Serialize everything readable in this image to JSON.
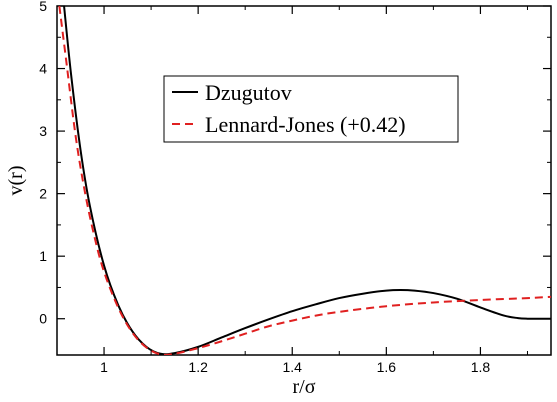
{
  "chart_data": {
    "type": "line",
    "xlabel": "r/σ",
    "ylabel": "v(r)",
    "xlim": [
      0.9,
      1.95
    ],
    "ylim": [
      -0.58,
      5.0
    ],
    "xticks": [
      1,
      1.2,
      1.4,
      1.6,
      1.8
    ],
    "xtick_labels": [
      "1",
      "1.2",
      "1.4",
      "1.6",
      "1.8"
    ],
    "yticks": [
      0,
      1,
      2,
      3,
      4,
      5
    ],
    "ytick_labels": [
      "0",
      "1",
      "2",
      "3",
      "4",
      "5"
    ],
    "grid": false,
    "legend_position": "top-center",
    "series": [
      {
        "name": "Dzugutov",
        "color": "#000000",
        "dash": "solid",
        "x": [
          0.915,
          0.93,
          0.95,
          0.97,
          1.0,
          1.03,
          1.06,
          1.09,
          1.12,
          1.15,
          1.2,
          1.25,
          1.3,
          1.35,
          1.4,
          1.45,
          1.5,
          1.55,
          1.6,
          1.63,
          1.66,
          1.7,
          1.75,
          1.8,
          1.85,
          1.88,
          1.9,
          1.92,
          1.95
        ],
        "y": [
          5.0,
          3.9,
          2.7,
          1.8,
          0.85,
          0.22,
          -0.2,
          -0.45,
          -0.56,
          -0.55,
          -0.45,
          -0.3,
          -0.15,
          -0.01,
          0.12,
          0.23,
          0.33,
          0.4,
          0.45,
          0.46,
          0.45,
          0.41,
          0.32,
          0.18,
          0.05,
          0.01,
          0.0,
          0.0,
          0.0
        ]
      },
      {
        "name": "Lennard-Jones (+0.42)",
        "color": "#e02020",
        "dash": "dashed",
        "x": [
          0.905,
          0.92,
          0.94,
          0.96,
          0.98,
          1.0,
          1.03,
          1.06,
          1.09,
          1.12,
          1.15,
          1.2,
          1.25,
          1.3,
          1.35,
          1.4,
          1.45,
          1.5,
          1.6,
          1.7,
          1.8,
          1.9,
          1.95
        ],
        "y": [
          5.0,
          4.1,
          2.9,
          2.0,
          1.3,
          0.75,
          0.18,
          -0.22,
          -0.46,
          -0.57,
          -0.56,
          -0.47,
          -0.36,
          -0.24,
          -0.12,
          -0.03,
          0.05,
          0.11,
          0.2,
          0.26,
          0.3,
          0.33,
          0.35
        ]
      }
    ]
  }
}
